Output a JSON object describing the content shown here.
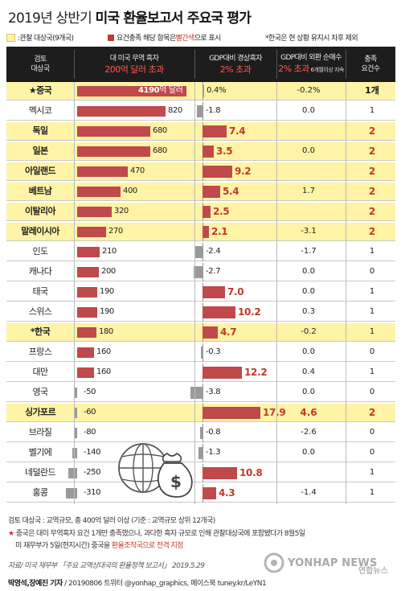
{
  "title": {
    "year": "2019년 상반기",
    "main": "미국 환율보고서 주요국 평가"
  },
  "legend": {
    "watch_list": ":관찰 대상국(9개국)",
    "criteria_prefix": "요건충족 해당 항목은 ",
    "criteria_red": "빨간색",
    "criteria_suffix": "으로 표시",
    "note": "*한국은 현 상황 유지시 차후 제외",
    "colors": {
      "watch": "#fff2a8",
      "criteria": "#c0392b",
      "header": "#1d1d1d",
      "negative": "#9a9a9a"
    }
  },
  "header": {
    "col1_line1": "검토",
    "col1_line2": "대상국",
    "col2_line1": "대 미국 무역 흑자",
    "col2_line2": "200억 달러 초과",
    "col3_line1": "GDP대비 경상흑자",
    "col3_line2": "2% 초과",
    "col4_line1": "GDP대비 외환 순매수",
    "col4_line2": "2% 초과",
    "col4_small": " 6개월이상 지속",
    "col5_line1": "충족",
    "col5_line2": "요건수"
  },
  "chart_data": {
    "type": "table",
    "columns": [
      "대 미국 무역 흑자(억 달러)",
      "GDP대비 경상흑자(%)",
      "GDP대비 외환 순매수(%)",
      "충족 요건수"
    ],
    "trade_unit_label": "억 달러",
    "rows": [
      {
        "country": "★중국",
        "watch": true,
        "trade": 4190,
        "trade_met": true,
        "current": 0.4,
        "current_label": "0.4%",
        "current_met": false,
        "fx": -0.2,
        "fx_label": "-0.2%",
        "fx_met": false,
        "criteria": 1,
        "criteria_label": "1개"
      },
      {
        "country": "멕시코",
        "watch": false,
        "trade": 820,
        "trade_met": true,
        "current": -1.8,
        "current_label": "-1.8",
        "current_met": false,
        "fx": 0.0,
        "fx_label": "0.0",
        "fx_met": false,
        "criteria": 1,
        "criteria_label": "1"
      },
      {
        "country": "독일",
        "watch": true,
        "trade": 680,
        "trade_met": true,
        "current": 7.4,
        "current_label": "7.4",
        "current_met": true,
        "fx": null,
        "fx_label": "",
        "fx_met": false,
        "criteria": 2,
        "criteria_label": "2"
      },
      {
        "country": "일본",
        "watch": true,
        "trade": 680,
        "trade_met": true,
        "current": 3.5,
        "current_label": "3.5",
        "current_met": true,
        "fx": 0.0,
        "fx_label": "0.0",
        "fx_met": false,
        "criteria": 2,
        "criteria_label": "2"
      },
      {
        "country": "아일랜드",
        "watch": true,
        "trade": 470,
        "trade_met": true,
        "current": 9.2,
        "current_label": "9.2",
        "current_met": true,
        "fx": null,
        "fx_label": "",
        "fx_met": false,
        "criteria": 2,
        "criteria_label": "2"
      },
      {
        "country": "베트남",
        "watch": true,
        "trade": 400,
        "trade_met": true,
        "current": 5.4,
        "current_label": "5.4",
        "current_met": true,
        "fx": 1.7,
        "fx_label": "1.7",
        "fx_met": false,
        "criteria": 2,
        "criteria_label": "2"
      },
      {
        "country": "이탈리아",
        "watch": true,
        "trade": 320,
        "trade_met": true,
        "current": 2.5,
        "current_label": "2.5",
        "current_met": true,
        "fx": null,
        "fx_label": "",
        "fx_met": false,
        "criteria": 2,
        "criteria_label": "2"
      },
      {
        "country": "말레이시아",
        "watch": true,
        "trade": 270,
        "trade_met": true,
        "current": 2.1,
        "current_label": "2.1",
        "current_met": true,
        "fx": -3.1,
        "fx_label": "-3.1",
        "fx_met": false,
        "criteria": 2,
        "criteria_label": "2"
      },
      {
        "country": "인도",
        "watch": false,
        "trade": 210,
        "trade_met": true,
        "current": -2.4,
        "current_label": "-2.4",
        "current_met": false,
        "fx": -1.7,
        "fx_label": "-1.7",
        "fx_met": false,
        "criteria": 1,
        "criteria_label": "1"
      },
      {
        "country": "캐나다",
        "watch": false,
        "trade": 200,
        "trade_met": false,
        "current": -2.7,
        "current_label": "-2.7",
        "current_met": false,
        "fx": 0.0,
        "fx_label": "0.0",
        "fx_met": false,
        "criteria": 0,
        "criteria_label": "0"
      },
      {
        "country": "태국",
        "watch": false,
        "trade": 190,
        "trade_met": false,
        "current": 7.0,
        "current_label": "7.0",
        "current_met": true,
        "fx": 0.0,
        "fx_label": "0.0",
        "fx_met": false,
        "criteria": 1,
        "criteria_label": "1"
      },
      {
        "country": "스위스",
        "watch": false,
        "trade": 190,
        "trade_met": false,
        "current": 10.2,
        "current_label": "10.2",
        "current_met": true,
        "fx": 0.3,
        "fx_label": "0.3",
        "fx_met": false,
        "criteria": 1,
        "criteria_label": "1"
      },
      {
        "country": "*한국",
        "watch": true,
        "trade": 180,
        "trade_met": false,
        "current": 4.7,
        "current_label": "4.7",
        "current_met": true,
        "fx": -0.2,
        "fx_label": "-0.2",
        "fx_met": false,
        "criteria": 1,
        "criteria_label": "1"
      },
      {
        "country": "프랑스",
        "watch": false,
        "trade": 160,
        "trade_met": false,
        "current": -0.3,
        "current_label": "-0.3",
        "current_met": false,
        "fx": 0.0,
        "fx_label": "0.0",
        "fx_met": false,
        "criteria": 0,
        "criteria_label": "0"
      },
      {
        "country": "대만",
        "watch": false,
        "trade": 160,
        "trade_met": false,
        "current": 12.2,
        "current_label": "12.2",
        "current_met": true,
        "fx": 0.4,
        "fx_label": "0.4",
        "fx_met": false,
        "criteria": 1,
        "criteria_label": "1"
      },
      {
        "country": "영국",
        "watch": false,
        "trade": -50,
        "trade_met": false,
        "current": -3.8,
        "current_label": "-3.8",
        "current_met": false,
        "fx": 0.0,
        "fx_label": "0.0",
        "fx_met": false,
        "criteria": 0,
        "criteria_label": "0"
      },
      {
        "country": "싱가포르",
        "watch": true,
        "trade": -60,
        "trade_met": false,
        "current": 17.9,
        "current_label": "17.9",
        "current_met": true,
        "fx": 4.6,
        "fx_label": "4.6",
        "fx_met": true,
        "criteria": 2,
        "criteria_label": "2"
      },
      {
        "country": "브라질",
        "watch": false,
        "trade": -80,
        "trade_met": false,
        "current": -0.8,
        "current_label": "-0.8",
        "current_met": false,
        "fx": -2.6,
        "fx_label": "-2.6",
        "fx_met": false,
        "criteria": 0,
        "criteria_label": "0"
      },
      {
        "country": "벨기에",
        "watch": false,
        "trade": -140,
        "trade_met": false,
        "current": -1.3,
        "current_label": "-1.3",
        "current_met": false,
        "fx": 0.0,
        "fx_label": "0.0",
        "fx_met": false,
        "criteria": 0,
        "criteria_label": "0"
      },
      {
        "country": "네덜란드",
        "watch": false,
        "trade": -250,
        "trade_met": false,
        "current": 10.8,
        "current_label": "10.8",
        "current_met": true,
        "fx": null,
        "fx_label": "",
        "fx_met": false,
        "criteria": 1,
        "criteria_label": "1"
      },
      {
        "country": "홍콩",
        "watch": false,
        "trade": -310,
        "trade_met": false,
        "current": 4.3,
        "current_label": "4.3",
        "current_met": true,
        "fx": -1.4,
        "fx_label": "-1.4",
        "fx_met": false,
        "criteria": 1,
        "criteria_label": "1"
      }
    ]
  },
  "footnotes": {
    "review": "검토 대상국 : 교역규모, 총 400억 달러 이상 (기준 : 교역규모 상위 12개국)",
    "china_star": "★",
    "china_note_1": " 중국은 대미 무역흑자 요건 1개만 충족했으나, 과다한 흑자 규모로 인해 관찰대상국에 포함됐다가 8월5일",
    "china_note_2a": "미 재무부가 5일(현지시간) 중국을 ",
    "china_note_2b": "환율조작국으로 전격 지정",
    "source": "자료/ 미국 재무부 「주요 교역상대국의 환율정책 보고서」 2019.5.29",
    "credit_name": "박영석,장예진 기자",
    "credit_rest": " / 20190806     트위터 @yonhap_graphics, 페이스북 tuney.kr/LeYN1",
    "brand": "YONHAP NEWS",
    "brand_kr": "연합뉴스"
  }
}
